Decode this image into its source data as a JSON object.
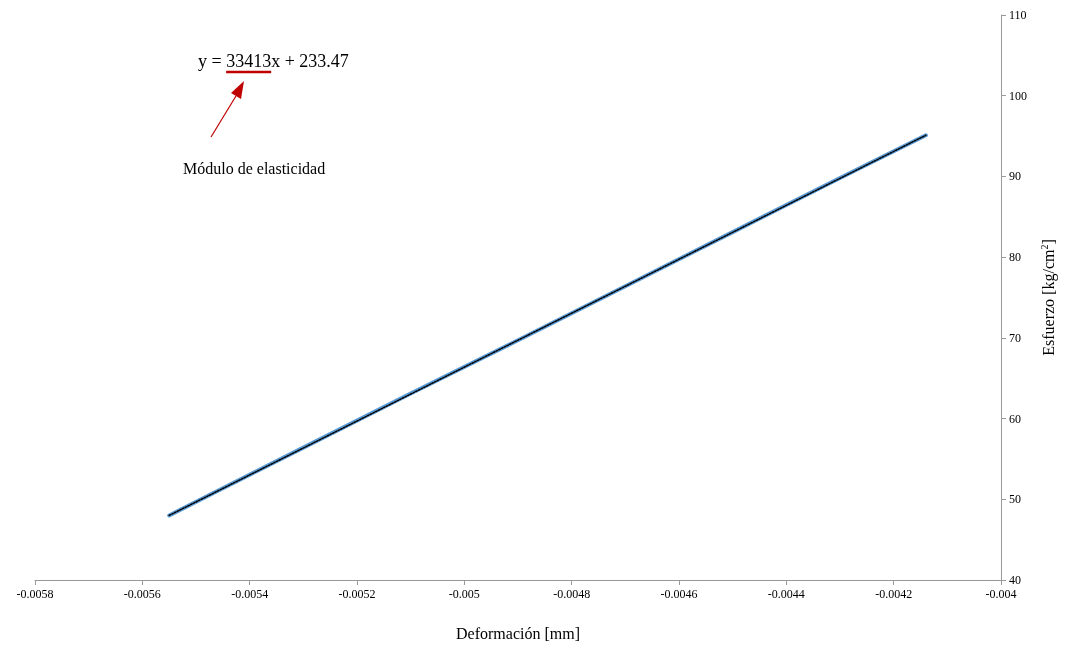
{
  "chart_data": {
    "type": "line",
    "xlabel": "Deformación [mm]",
    "ylabel": "Esfuerzo [kg/cm$^{2}$]",
    "x": [
      -0.00555,
      -0.0053,
      -0.0051,
      -0.0049,
      -0.0047,
      -0.0045,
      -0.0043,
      -0.00414
    ],
    "series": [
      {
        "color": "#5b9bd5",
        "values": [
          48.0,
          56.4,
          63.1,
          69.7,
          76.4,
          83.1,
          89.8,
          95.1
        ],
        "line_style": "solid"
      },
      {
        "type": "line",
        "color": "#000000",
        "x": [
          -0.00555,
          -0.00414
        ],
        "values": [
          48.0,
          95.1
        ],
        "line_style": "dotted"
      }
    ],
    "xlim": [
      -0.0058,
      -0.004
    ],
    "xticks": [
      -0.0058,
      -0.0056,
      -0.0054,
      -0.0052,
      -0.005,
      -0.0048,
      -0.0046,
      -0.0044,
      -0.0042,
      -0.004
    ],
    "ylim": [
      40,
      110
    ],
    "yticks": [
      40,
      50,
      60,
      70,
      80,
      90,
      100,
      110
    ],
    "annotations": [
      "y = 33413x + 233.47",
      "Módulo de elasticidad"
    ],
    "grid": false,
    "marker": "none"
  }
}
